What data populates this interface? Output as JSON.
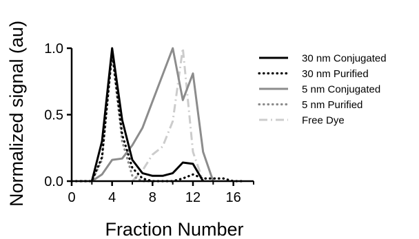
{
  "chart_data": {
    "type": "line",
    "xlabel": "Fraction Number",
    "ylabel": "Normalized signal (au)",
    "xlim": [
      0,
      18
    ],
    "ylim": [
      0,
      1.0
    ],
    "xticks": [
      0,
      4,
      8,
      12,
      16
    ],
    "yticks": [
      0.0,
      0.5,
      1.0
    ],
    "xtick_labels": [
      "0",
      "4",
      "8",
      "12",
      "16"
    ],
    "ytick_labels": [
      "0.0",
      "0.5",
      "1.0"
    ],
    "grid": false,
    "legend": "right",
    "series": [
      {
        "name": "30 nm Conjugated",
        "style": "solid",
        "color": "#000000",
        "x": [
          2,
          3,
          4,
          5,
          6,
          7,
          8,
          9,
          10,
          11,
          12,
          13
        ],
        "y": [
          0.0,
          0.3,
          1.0,
          0.46,
          0.16,
          0.06,
          0.04,
          0.04,
          0.06,
          0.14,
          0.13,
          0.0
        ]
      },
      {
        "name": "30 nm Purified",
        "style": "dotted",
        "color": "#000000",
        "x": [
          0,
          1,
          2,
          3,
          4,
          5,
          6,
          7,
          8,
          9,
          10,
          11,
          12,
          13,
          14,
          15,
          16,
          17
        ],
        "y": [
          0.0,
          0.0,
          0.0,
          0.18,
          0.97,
          0.35,
          0.1,
          0.02,
          0.0,
          0.0,
          0.0,
          0.02,
          0.05,
          0.02,
          0.02,
          0.02,
          0.0,
          0.0
        ]
      },
      {
        "name": "5 nm Conjugated",
        "style": "solid",
        "color": "#8c8c8c",
        "x": [
          2,
          3,
          4,
          5,
          6,
          7,
          8,
          9,
          10,
          11,
          12,
          13,
          14
        ],
        "y": [
          0.0,
          0.05,
          0.16,
          0.17,
          0.27,
          0.4,
          0.6,
          0.8,
          1.0,
          0.61,
          0.81,
          0.22,
          0.0
        ]
      },
      {
        "name": "5 nm Purified",
        "style": "dotted",
        "color": "#8c8c8c",
        "x": [
          1,
          2,
          3,
          4,
          5,
          6,
          7,
          8
        ],
        "y": [
          0.0,
          0.0,
          0.16,
          0.96,
          0.3,
          0.04,
          0.0,
          0.0
        ]
      },
      {
        "name": "Free Dye",
        "style": "dashdot",
        "color": "#cccccc",
        "x": [
          6,
          7,
          8,
          9,
          10,
          11,
          12,
          13
        ],
        "y": [
          0.0,
          0.08,
          0.2,
          0.26,
          0.45,
          1.0,
          0.22,
          0.0
        ]
      }
    ]
  }
}
